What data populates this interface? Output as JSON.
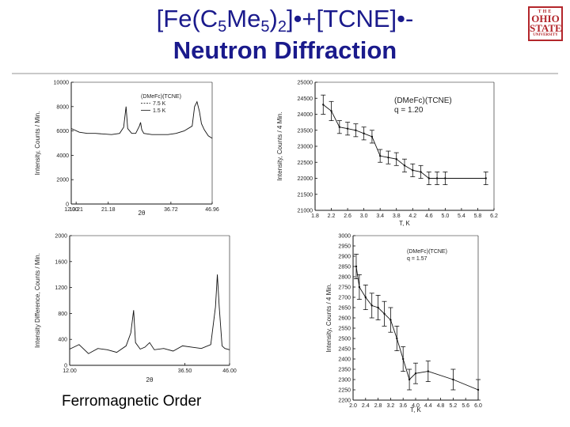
{
  "header": {
    "title_part1": "[Fe(C",
    "title_sub1": "5",
    "title_part2": "Me",
    "title_sub2": "5",
    "title_part3": ")",
    "title_sub3": "2",
    "title_part4": "]•+[TCNE]•-",
    "title_line2": "Neutron Diffraction",
    "logo_line1": "THE",
    "logo_line2": "OHIO",
    "logo_line3": "STATE",
    "logo_line4": "UNIVERSITY"
  },
  "caption": "Ferromagnetic Order",
  "colors": {
    "title": "#1a1a8c",
    "logo": "#b3262b",
    "ink": "#111111"
  },
  "chart_data": [
    {
      "type": "line",
      "xlabel": "2θ",
      "ylabel": "Intensity, Counts / Min.",
      "xlim": [
        12.0,
        46.96
      ],
      "ylim": [
        0,
        10000
      ],
      "xticks": [
        "12.00",
        "13.21",
        "21.18",
        "36.72",
        "46.96"
      ],
      "yticks": [
        "0",
        "2000",
        "4000",
        "6000",
        "8000",
        "10000"
      ],
      "legend": {
        "title": "(DMeFc)(TCNE)",
        "entries": [
          "7.5 K",
          "1.5 K"
        ],
        "placement": "top-left"
      },
      "series": [
        {
          "name": "7.5 K",
          "x": [
            12,
            14,
            16,
            18,
            20,
            22,
            24,
            25,
            25.6,
            26,
            27,
            28,
            28.9,
            29.2,
            29.5,
            30,
            32,
            34,
            36,
            38,
            40,
            42,
            42.6,
            43.2,
            43.8,
            44.3,
            45,
            46,
            46.96
          ],
          "y": [
            6200,
            5900,
            5800,
            5800,
            5750,
            5700,
            5800,
            6300,
            8000,
            6200,
            5800,
            5800,
            6400,
            6700,
            6100,
            5800,
            5700,
            5700,
            5700,
            5800,
            6000,
            6400,
            8000,
            8400,
            7600,
            6600,
            6100,
            5600,
            5400
          ]
        }
      ]
    },
    {
      "type": "line",
      "xlabel": "T, K",
      "ylabel": "Intensity, Counts / 4 Min.",
      "xlim": [
        1.8,
        6.2
      ],
      "ylim": [
        21000,
        25000
      ],
      "xticks": [
        "1.8",
        "2.2",
        "2.6",
        "3.0",
        "3.4",
        "3.8",
        "4.2",
        "4.6",
        "5.0",
        "5.4",
        "5.8",
        "6.2"
      ],
      "yticks": [
        "21000",
        "21500",
        "22000",
        "22500",
        "23000",
        "23500",
        "24000",
        "24500",
        "25000"
      ],
      "legend": {
        "title": "(DMeFc)(TCNE)",
        "entries": [
          "q = 1.20"
        ],
        "placement": "top-right"
      },
      "series": [
        {
          "name": "q = 1.20",
          "x": [
            2.0,
            2.2,
            2.4,
            2.6,
            2.8,
            3.0,
            3.2,
            3.4,
            3.6,
            3.8,
            4.0,
            4.2,
            4.4,
            4.6,
            4.8,
            5.0,
            6.0
          ],
          "y": [
            24300,
            24100,
            23600,
            23550,
            23500,
            23400,
            23300,
            22700,
            22650,
            22600,
            22400,
            22250,
            22200,
            22000,
            22000,
            22000,
            22000
          ],
          "err": [
            300,
            300,
            200,
            200,
            200,
            200,
            200,
            200,
            200,
            200,
            200,
            200,
            200,
            200,
            200,
            200,
            200
          ]
        }
      ]
    },
    {
      "type": "line",
      "xlabel": "2θ",
      "ylabel": "Intensity Difference, Counts / Min.",
      "xlim": [
        12.0,
        46.0
      ],
      "ylim": [
        0,
        2000
      ],
      "xticks": [
        "12.00",
        "36.50",
        "46.00"
      ],
      "yticks": [
        "0",
        "400",
        "800",
        "1200",
        "1600",
        "2000"
      ],
      "series": [
        {
          "name": "difference",
          "x": [
            12,
            14,
            16,
            18,
            20,
            22,
            24,
            25,
            25.6,
            26,
            27,
            28,
            29,
            30,
            32,
            34,
            36,
            38,
            40,
            42,
            43,
            43.4,
            43.8,
            44.4,
            45,
            46
          ],
          "y": [
            250,
            320,
            180,
            260,
            240,
            200,
            300,
            500,
            850,
            350,
            250,
            280,
            350,
            240,
            260,
            220,
            300,
            280,
            260,
            320,
            900,
            1400,
            900,
            300,
            260,
            240
          ]
        }
      ]
    },
    {
      "type": "line",
      "xlabel": "T, K",
      "ylabel": "Intensity, Counts / 4 Min.",
      "xlim": [
        2.0,
        6.0
      ],
      "ylim": [
        2200,
        3000
      ],
      "xticks": [
        "2.0",
        "2.4",
        "2.8",
        "3.2",
        "3.6",
        "4.0",
        "4.4",
        "4.8",
        "5.2",
        "5.6",
        "6.0"
      ],
      "yticks": [
        "2200",
        "2250",
        "2300",
        "2350",
        "2400",
        "2450",
        "2500",
        "2550",
        "2600",
        "2650",
        "2700",
        "2750",
        "2800",
        "2850",
        "2900",
        "2950",
        "3000"
      ],
      "legend": {
        "title": "(DMeFc)(TCNE)",
        "entries": [
          "q = 1.57"
        ],
        "placement": "top-right"
      },
      "series": [
        {
          "name": "q = 1.57",
          "x": [
            2.1,
            2.2,
            2.4,
            2.6,
            2.8,
            3.0,
            3.2,
            3.4,
            3.6,
            3.8,
            4.0,
            4.4,
            5.2,
            6.0
          ],
          "y": [
            2850,
            2750,
            2700,
            2660,
            2650,
            2620,
            2590,
            2500,
            2400,
            2300,
            2330,
            2340,
            2300,
            2250
          ],
          "err": [
            60,
            60,
            60,
            60,
            60,
            60,
            60,
            60,
            60,
            50,
            50,
            50,
            50,
            50
          ]
        }
      ]
    }
  ]
}
